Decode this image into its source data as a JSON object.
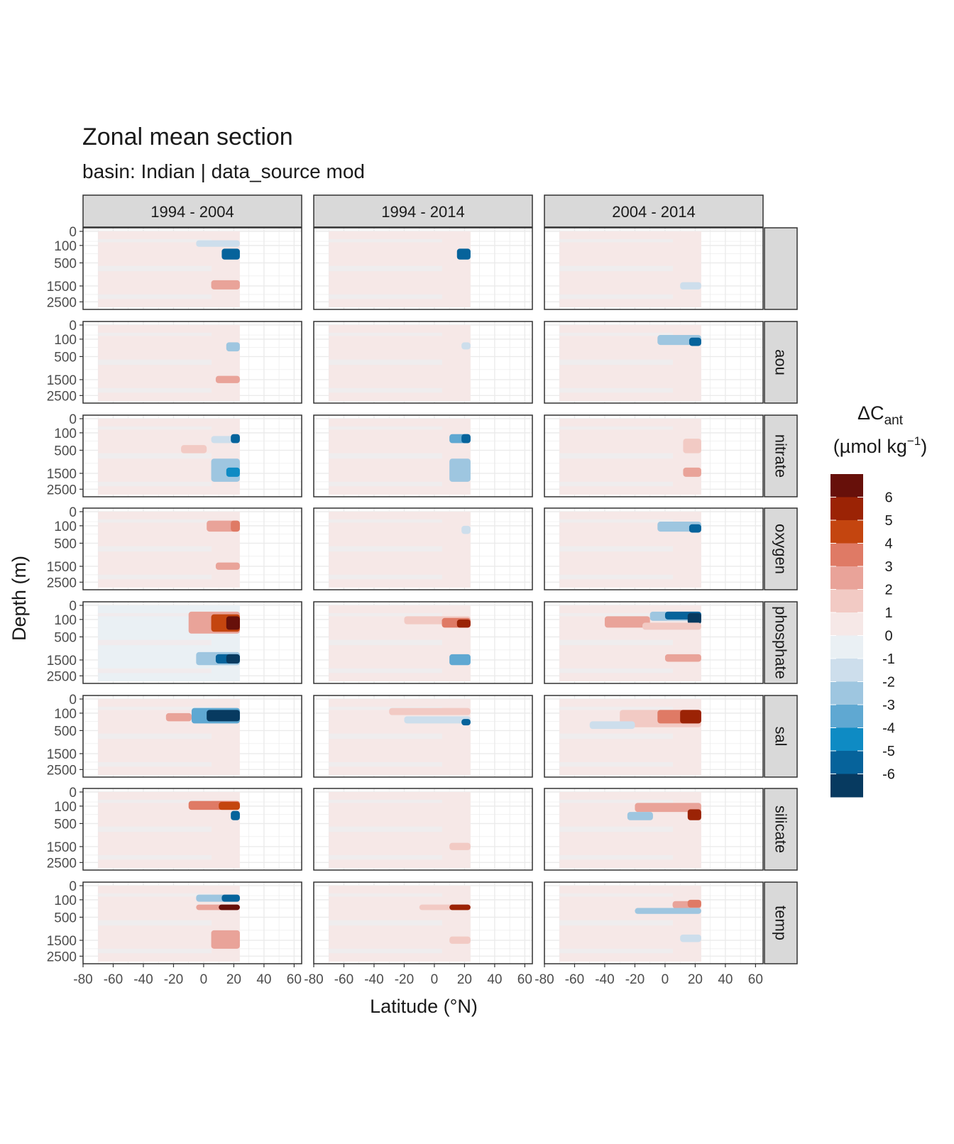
{
  "chart_data": {
    "type": "heatmap",
    "title": "Zonal mean section",
    "subtitle": "basin: Indian | data_source mod",
    "xlabel": "Latitude (°N)",
    "ylabel": "Depth (m)",
    "xlim": [
      -80,
      65
    ],
    "x_ticks": [
      -80,
      -60,
      -40,
      -20,
      0,
      20,
      40,
      60
    ],
    "y_ticks": [
      0,
      100,
      500,
      1500,
      2500
    ],
    "y_scale": "sqrt, reversed",
    "grid": true,
    "data_extent_lat": [
      -70,
      24
    ],
    "columns": [
      "1994 - 2004",
      "1994 - 2014",
      "2004 - 2014"
    ],
    "rows": [
      "",
      "aou",
      "nitrate",
      "oxygen",
      "phosphate",
      "sal",
      "silicate",
      "temp"
    ],
    "legend": {
      "title_main": "ΔC",
      "title_sub": "ant",
      "unit_prefix": "(µmol kg",
      "unit_sup": "−1",
      "unit_suffix": ")",
      "position": "right",
      "labels": [
        "6",
        "5",
        "4",
        "3",
        "2",
        "1",
        "0",
        "-1",
        "-2",
        "-3",
        "-4",
        "-5",
        "-6"
      ],
      "colors": [
        "#67100a",
        "#9b2305",
        "#c4450f",
        "#df7a65",
        "#e9a399",
        "#f2cac4",
        "#f6e8e7",
        "#eaf0f4",
        "#cddeec",
        "#9ec6e0",
        "#5fa8d2",
        "#0e8bc4",
        "#06639b",
        "#073a60"
      ]
    },
    "panels": [
      [
        {
          "base": 0.3,
          "features": [
            {
              "lat": [
                -5,
                24
              ],
              "depth": [
                40,
                120
              ],
              "v": -1.5
            },
            {
              "lat": [
                12,
                24
              ],
              "depth": [
                150,
                400
              ],
              "v": -5.5
            },
            {
              "lat": [
                5,
                24
              ],
              "depth": [
                1200,
                1700
              ],
              "v": 2.8
            }
          ]
        },
        {
          "base": 0.2,
          "features": [
            {
              "lat": [
                15,
                24
              ],
              "depth": [
                150,
                400
              ],
              "v": -5
            }
          ]
        },
        {
          "base": 0.1,
          "features": [
            {
              "lat": [
                10,
                24
              ],
              "depth": [
                1300,
                1700
              ],
              "v": -1.5
            }
          ]
        }
      ],
      [
        {
          "base": 0.4,
          "features": [
            {
              "lat": [
                15,
                24
              ],
              "depth": [
                150,
                350
              ],
              "v": -2
            },
            {
              "lat": [
                8,
                24
              ],
              "depth": [
                1300,
                1700
              ],
              "v": 2.2
            }
          ]
        },
        {
          "base": 0.3,
          "features": [
            {
              "lat": [
                18,
                24
              ],
              "depth": [
                150,
                300
              ],
              "v": -1.2
            }
          ]
        },
        {
          "base": 0.3,
          "features": [
            {
              "lat": [
                -5,
                24
              ],
              "depth": [
                50,
                200
              ],
              "v": -2.2
            },
            {
              "lat": [
                16,
                24
              ],
              "depth": [
                80,
                220
              ],
              "v": -5
            }
          ]
        }
      ],
      [
        {
          "base": 0.3,
          "features": [
            {
              "lat": [
                -15,
                2
              ],
              "depth": [
                350,
                600
              ],
              "v": 2
            },
            {
              "lat": [
                5,
                24
              ],
              "depth": [
                150,
                300
              ],
              "v": -1.5
            },
            {
              "lat": [
                18,
                24
              ],
              "depth": [
                120,
                300
              ],
              "v": -5
            },
            {
              "lat": [
                5,
                24
              ],
              "depth": [
                800,
                2000
              ],
              "v": -2
            },
            {
              "lat": [
                15,
                24
              ],
              "depth": [
                1200,
                1700
              ],
              "v": -4
            }
          ]
        },
        {
          "base": 0.3,
          "features": [
            {
              "lat": [
                10,
                24
              ],
              "depth": [
                120,
                300
              ],
              "v": -3
            },
            {
              "lat": [
                18,
                24
              ],
              "depth": [
                120,
                300
              ],
              "v": -5.5
            },
            {
              "lat": [
                10,
                24
              ],
              "depth": [
                800,
                2000
              ],
              "v": -2
            }
          ]
        },
        {
          "base": 0.4,
          "features": [
            {
              "lat": [
                12,
                24
              ],
              "depth": [
                200,
                600
              ],
              "v": 1.8
            },
            {
              "lat": [
                12,
                24
              ],
              "depth": [
                1200,
                1700
              ],
              "v": 2.2
            }
          ]
        }
      ],
      [
        {
          "base": 0.4,
          "features": [
            {
              "lat": [
                2,
                24
              ],
              "depth": [
                40,
                200
              ],
              "v": 2.5
            },
            {
              "lat": [
                18,
                24
              ],
              "depth": [
                40,
                200
              ],
              "v": 4
            },
            {
              "lat": [
                8,
                24
              ],
              "depth": [
                1300,
                1700
              ],
              "v": 2.5
            }
          ]
        },
        {
          "base": 0.3,
          "features": [
            {
              "lat": [
                18,
                24
              ],
              "depth": [
                100,
                250
              ],
              "v": -1.5
            }
          ]
        },
        {
          "base": 0.3,
          "features": [
            {
              "lat": [
                -5,
                24
              ],
              "depth": [
                50,
                200
              ],
              "v": -2
            },
            {
              "lat": [
                16,
                24
              ],
              "depth": [
                80,
                220
              ],
              "v": -5
            }
          ]
        }
      ],
      [
        {
          "base": -0.2,
          "features": [
            {
              "lat": [
                -10,
                24
              ],
              "depth": [
                20,
                400
              ],
              "v": 3
            },
            {
              "lat": [
                5,
                24
              ],
              "depth": [
                40,
                350
              ],
              "v": 5
            },
            {
              "lat": [
                15,
                24
              ],
              "depth": [
                60,
                300
              ],
              "v": 6.5
            },
            {
              "lat": [
                -5,
                24
              ],
              "depth": [
                1100,
                1800
              ],
              "v": -2.5
            },
            {
              "lat": [
                8,
                24
              ],
              "depth": [
                1200,
                1700
              ],
              "v": -5
            },
            {
              "lat": [
                15,
                24
              ],
              "depth": [
                1200,
                1700
              ],
              "v": -6.5
            }
          ]
        },
        {
          "base": 0.3,
          "features": [
            {
              "lat": [
                -20,
                24
              ],
              "depth": [
                60,
                180
              ],
              "v": 1.8
            },
            {
              "lat": [
                5,
                24
              ],
              "depth": [
                80,
                250
              ],
              "v": 4
            },
            {
              "lat": [
                15,
                24
              ],
              "depth": [
                100,
                250
              ],
              "v": 6
            },
            {
              "lat": [
                10,
                24
              ],
              "depth": [
                1200,
                1800
              ],
              "v": -3
            }
          ]
        },
        {
          "base": 0.2,
          "features": [
            {
              "lat": [
                -40,
                -10
              ],
              "depth": [
                60,
                250
              ],
              "v": 2.5
            },
            {
              "lat": [
                -10,
                24
              ],
              "depth": [
                20,
                120
              ],
              "v": -2.5
            },
            {
              "lat": [
                0,
                24
              ],
              "depth": [
                20,
                100
              ],
              "v": -5
            },
            {
              "lat": [
                15,
                24
              ],
              "depth": [
                30,
                180
              ],
              "v": -6.5
            },
            {
              "lat": [
                -15,
                24
              ],
              "depth": [
                150,
                300
              ],
              "v": 2
            },
            {
              "lat": [
                0,
                24
              ],
              "depth": [
                1200,
                1600
              ],
              "v": 3
            }
          ]
        }
      ],
      [
        {
          "base": 0.3,
          "features": [
            {
              "lat": [
                -25,
                -8
              ],
              "depth": [
                100,
                250
              ],
              "v": 3
            },
            {
              "lat": [
                -8,
                24
              ],
              "depth": [
                40,
                300
              ],
              "v": -3
            },
            {
              "lat": [
                2,
                24
              ],
              "depth": [
                60,
                250
              ],
              "v": -6
            }
          ]
        },
        {
          "base": 0.4,
          "features": [
            {
              "lat": [
                -30,
                24
              ],
              "depth": [
                40,
                130
              ],
              "v": 2
            },
            {
              "lat": [
                -20,
                24
              ],
              "depth": [
                150,
                300
              ],
              "v": -1.5
            },
            {
              "lat": [
                18,
                24
              ],
              "depth": [
                200,
                350
              ],
              "v": -5
            }
          ]
        },
        {
          "base": 0.4,
          "features": [
            {
              "lat": [
                -30,
                24
              ],
              "depth": [
                60,
                400
              ],
              "v": 2
            },
            {
              "lat": [
                -5,
                24
              ],
              "depth": [
                60,
                300
              ],
              "v": 3.5
            },
            {
              "lat": [
                10,
                24
              ],
              "depth": [
                60,
                300
              ],
              "v": 5.5
            },
            {
              "lat": [
                -50,
                -20
              ],
              "depth": [
                250,
                450
              ],
              "v": -1.5
            }
          ]
        }
      ],
      [
        {
          "base": 0.3,
          "features": [
            {
              "lat": [
                -10,
                24
              ],
              "depth": [
                40,
                160
              ],
              "v": 3.5
            },
            {
              "lat": [
                10,
                24
              ],
              "depth": [
                50,
                160
              ],
              "v": 5
            },
            {
              "lat": [
                18,
                24
              ],
              "depth": [
                180,
                400
              ],
              "v": -5
            }
          ]
        },
        {
          "base": 0.1,
          "features": [
            {
              "lat": [
                10,
                24
              ],
              "depth": [
                1300,
                1700
              ],
              "v": 2
            }
          ]
        },
        {
          "base": 0.3,
          "features": [
            {
              "lat": [
                -20,
                24
              ],
              "depth": [
                60,
                200
              ],
              "v": 2.3
            },
            {
              "lat": [
                15,
                24
              ],
              "depth": [
                150,
                400
              ],
              "v": 5.5
            },
            {
              "lat": [
                -25,
                -8
              ],
              "depth": [
                200,
                400
              ],
              "v": -2.5
            }
          ]
        }
      ],
      [
        {
          "base": 0.3,
          "features": [
            {
              "lat": [
                -5,
                24
              ],
              "depth": [
                40,
                130
              ],
              "v": -2.5
            },
            {
              "lat": [
                12,
                24
              ],
              "depth": [
                40,
                130
              ],
              "v": -5
            },
            {
              "lat": [
                -5,
                24
              ],
              "depth": [
                180,
                300
              ],
              "v": 3
            },
            {
              "lat": [
                10,
                24
              ],
              "depth": [
                180,
                300
              ],
              "v": 6.5
            },
            {
              "lat": [
                5,
                24
              ],
              "depth": [
                1000,
                2000
              ],
              "v": 2.8
            }
          ]
        },
        {
          "base": 0.3,
          "features": [
            {
              "lat": [
                -10,
                24
              ],
              "depth": [
                180,
                300
              ],
              "v": 2
            },
            {
              "lat": [
                10,
                24
              ],
              "depth": [
                180,
                300
              ],
              "v": 6
            },
            {
              "lat": [
                10,
                24
              ],
              "depth": [
                1300,
                1700
              ],
              "v": 2
            }
          ]
        },
        {
          "base": 0.3,
          "features": [
            {
              "lat": [
                5,
                24
              ],
              "depth": [
                120,
                260
              ],
              "v": 2.5
            },
            {
              "lat": [
                15,
                24
              ],
              "depth": [
                100,
                240
              ],
              "v": 4
            },
            {
              "lat": [
                -20,
                24
              ],
              "depth": [
                250,
                400
              ],
              "v": -2
            },
            {
              "lat": [
                10,
                24
              ],
              "depth": [
                1200,
                1600
              ],
              "v": -1.8
            }
          ]
        }
      ]
    ]
  }
}
